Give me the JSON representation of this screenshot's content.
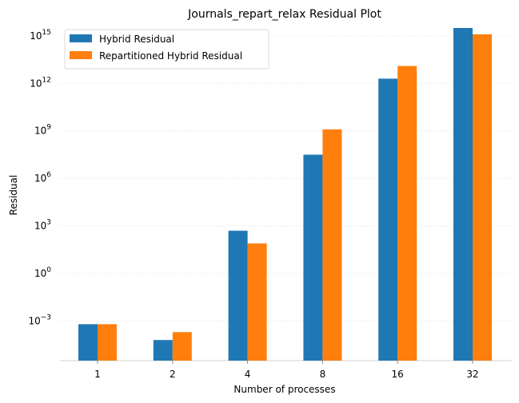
{
  "chart_data": {
    "type": "bar",
    "title": "Journals_repart_relax Residual Plot",
    "xlabel": "Number of processes",
    "ylabel": "Residual",
    "yscale": "log",
    "ylim_exponent": [
      -5.5,
      15.6
    ],
    "categories": [
      "1",
      "2",
      "4",
      "8",
      "16",
      "32"
    ],
    "yticks": [
      {
        "label": "10",
        "exp": "−3",
        "value": -3
      },
      {
        "label": "10",
        "exp": "0",
        "value": 0
      },
      {
        "label": "10",
        "exp": "3",
        "value": 3
      },
      {
        "label": "10",
        "exp": "6",
        "value": 6
      },
      {
        "label": "10",
        "exp": "9",
        "value": 9
      },
      {
        "label": "10",
        "exp": "12",
        "value": 12
      },
      {
        "label": "10",
        "exp": "15",
        "value": 15
      }
    ],
    "series": [
      {
        "name": "Hybrid Residual",
        "color": "#1f77b4",
        "log10_values": [
          -3.2,
          -4.2,
          2.7,
          7.5,
          12.3,
          15.5
        ]
      },
      {
        "name": "Repartitioned Hybrid Residual",
        "color": "#ff7f0e",
        "log10_values": [
          -3.2,
          -3.7,
          1.9,
          9.1,
          13.1,
          15.1
        ]
      }
    ],
    "grid": true,
    "legend_position": "top-left"
  }
}
